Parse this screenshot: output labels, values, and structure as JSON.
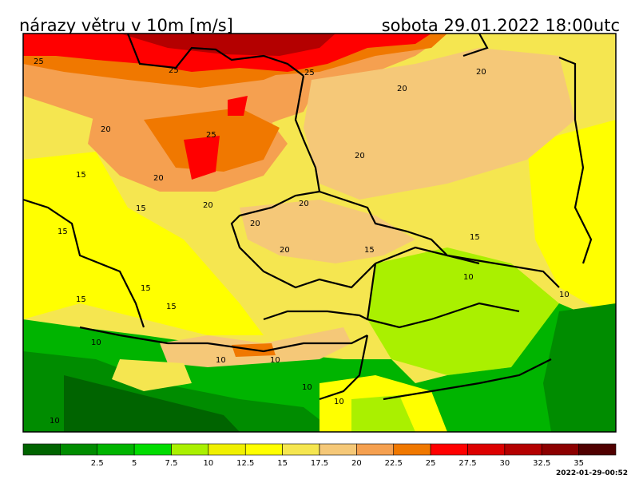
{
  "header": {
    "title_left": "nárazy větru v 10m [m/s]",
    "title_right": "sobota 29.01.2022 18:00utc"
  },
  "colorbar": {
    "colors": [
      "#006400",
      "#008c00",
      "#00b400",
      "#00dc00",
      "#aaf000",
      "#f0f000",
      "#ffff00",
      "#f5e650",
      "#f5c878",
      "#f5a050",
      "#f07800",
      "#ff0000",
      "#dc0000",
      "#b40000",
      "#8c0000",
      "#500000"
    ],
    "labels": [
      "2.5",
      "5",
      "7.5",
      "10",
      "12.5",
      "15",
      "17.5",
      "20",
      "22.5",
      "25",
      "27.5",
      "30",
      "32.5",
      "35"
    ]
  },
  "contour_labels": [
    "25",
    "25",
    "25",
    "25",
    "20",
    "20",
    "20",
    "20",
    "20",
    "20",
    "20",
    "20",
    "20",
    "15",
    "15",
    "15",
    "15",
    "15",
    "15",
    "15",
    "15",
    "10",
    "10",
    "10",
    "10",
    "10",
    "10",
    "10",
    "10"
  ],
  "footer": {
    "stamp": "2022-01-29-00:52"
  }
}
